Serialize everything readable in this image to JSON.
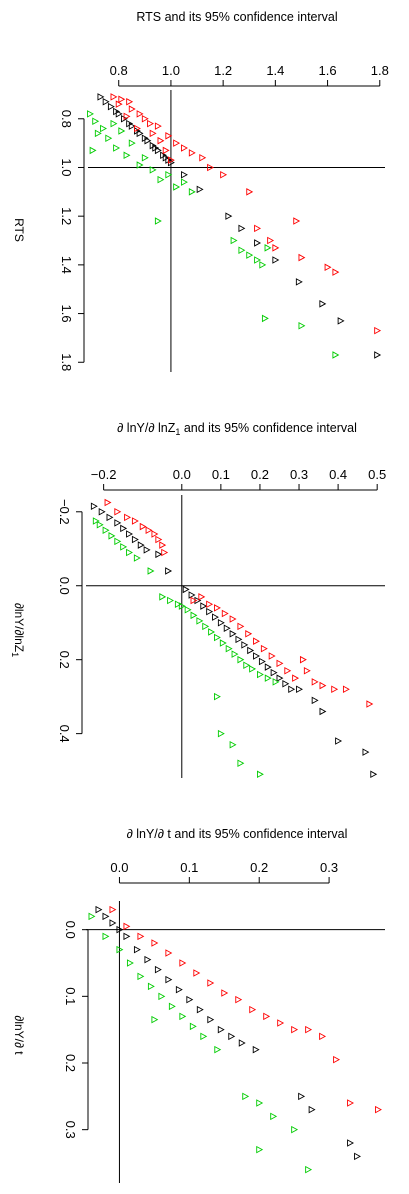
{
  "colors": {
    "black": "#000000",
    "red": "#ff0000",
    "green": "#00cc00"
  },
  "chart_data": [
    {
      "type": "scatter",
      "title": "RTS and its 95% confidence interval",
      "ylabel": "RTS",
      "xlim": [
        0.69,
        1.82
      ],
      "ylim": [
        0.69,
        1.84
      ],
      "xticks": [
        "0.8",
        "1.0",
        "1.2",
        "1.4",
        "1.6",
        "1.8"
      ],
      "yticks": [
        "0.8",
        "1.0",
        "1.2",
        "1.4",
        "1.6",
        "1.8"
      ],
      "ref": 1.0,
      "series": [
        {
          "color": "black",
          "points": [
            [
              0.73,
              0.71
            ],
            [
              0.75,
              0.73
            ],
            [
              0.77,
              0.75
            ],
            [
              0.79,
              0.77
            ],
            [
              0.8,
              0.78
            ],
            [
              0.82,
              0.8
            ],
            [
              0.84,
              0.82
            ],
            [
              0.85,
              0.83
            ],
            [
              0.87,
              0.85
            ],
            [
              0.88,
              0.86
            ],
            [
              0.9,
              0.88
            ],
            [
              0.91,
              0.89
            ],
            [
              0.93,
              0.91
            ],
            [
              0.94,
              0.92
            ],
            [
              0.95,
              0.93
            ],
            [
              0.97,
              0.95
            ],
            [
              0.98,
              0.96
            ],
            [
              0.99,
              0.97
            ],
            [
              1.0,
              0.98
            ],
            [
              1.05,
              1.03
            ],
            [
              1.11,
              1.09
            ],
            [
              1.22,
              1.2
            ],
            [
              1.27,
              1.25
            ],
            [
              1.33,
              1.31
            ],
            [
              1.4,
              1.38
            ],
            [
              1.49,
              1.47
            ],
            [
              1.58,
              1.56
            ],
            [
              1.65,
              1.63
            ],
            [
              1.79,
              1.77
            ]
          ]
        },
        {
          "color": "red",
          "points": [
            [
              0.78,
              0.71
            ],
            [
              0.81,
              0.72
            ],
            [
              0.84,
              0.73
            ],
            [
              0.8,
              0.74
            ],
            [
              0.85,
              0.76
            ],
            [
              0.88,
              0.78
            ],
            [
              0.83,
              0.79
            ],
            [
              0.9,
              0.8
            ],
            [
              0.92,
              0.82
            ],
            [
              0.95,
              0.83
            ],
            [
              0.87,
              0.84
            ],
            [
              0.93,
              0.86
            ],
            [
              0.99,
              0.87
            ],
            [
              0.96,
              0.89
            ],
            [
              1.02,
              0.9
            ],
            [
              1.05,
              0.92
            ],
            [
              0.98,
              0.93
            ],
            [
              1.08,
              0.94
            ],
            [
              1.12,
              0.96
            ],
            [
              1.0,
              0.97
            ],
            [
              1.15,
              1.0
            ],
            [
              1.2,
              1.03
            ],
            [
              1.3,
              1.1
            ],
            [
              1.33,
              1.25
            ],
            [
              1.38,
              1.3
            ],
            [
              1.4,
              1.33
            ],
            [
              1.48,
              1.22
            ],
            [
              1.5,
              1.37
            ],
            [
              1.6,
              1.41
            ],
            [
              1.63,
              1.43
            ],
            [
              1.79,
              1.67
            ]
          ]
        },
        {
          "color": "green",
          "points": [
            [
              0.69,
              0.78
            ],
            [
              0.71,
              0.81
            ],
            [
              0.72,
              0.86
            ],
            [
              0.74,
              0.84
            ],
            [
              0.76,
              0.88
            ],
            [
              0.78,
              0.82
            ],
            [
              0.79,
              0.92
            ],
            [
              0.81,
              0.85
            ],
            [
              0.83,
              0.95
            ],
            [
              0.85,
              0.9
            ],
            [
              0.7,
              0.93
            ],
            [
              0.88,
              0.99
            ],
            [
              0.9,
              0.96
            ],
            [
              0.93,
              1.01
            ],
            [
              0.96,
              1.05
            ],
            [
              0.99,
              1.03
            ],
            [
              1.02,
              1.08
            ],
            [
              1.05,
              1.06
            ],
            [
              1.08,
              1.1
            ],
            [
              0.95,
              1.22
            ],
            [
              1.24,
              1.3
            ],
            [
              1.27,
              1.34
            ],
            [
              1.3,
              1.36
            ],
            [
              1.33,
              1.38
            ],
            [
              1.35,
              1.4
            ],
            [
              1.36,
              1.62
            ],
            [
              1.5,
              1.65
            ],
            [
              1.63,
              1.77
            ],
            [
              1.37,
              1.33
            ]
          ]
        }
      ]
    },
    {
      "type": "scatter",
      "title": "∂ lnY/∂ lnZ",
      "title_sub": "1",
      "title_rest": " and its 95% confidence interval",
      "ylabel": "∂lnY/∂lnZ",
      "ylabel_sub": "1",
      "xlim": [
        -0.24,
        0.52
      ],
      "ylim": [
        -0.24,
        0.52
      ],
      "xticks": [
        "-0.2",
        "0.0",
        "0.1",
        "0.2",
        "0.3",
        "0.4",
        "0.5"
      ],
      "xtick_values": [
        -0.2,
        0.0,
        0.1,
        0.2,
        0.3,
        0.4,
        0.5
      ],
      "yticks": [
        "-0.2",
        "0.0",
        "0.2",
        "0.4"
      ],
      "ytick_values": [
        -0.2,
        0.0,
        0.2,
        0.4
      ],
      "ref": 0.0,
      "series": [
        {
          "color": "black",
          "points": [
            [
              -0.225,
              -0.215
            ],
            [
              -0.205,
              -0.2
            ],
            [
              -0.185,
              -0.185
            ],
            [
              -0.165,
              -0.17
            ],
            [
              -0.15,
              -0.155
            ],
            [
              -0.135,
              -0.14
            ],
            [
              -0.12,
              -0.125
            ],
            [
              -0.105,
              -0.11
            ],
            [
              -0.09,
              -0.097
            ],
            [
              -0.06,
              -0.085
            ],
            [
              -0.035,
              -0.04
            ],
            [
              0.01,
              0.01
            ],
            [
              0.025,
              0.025
            ],
            [
              0.04,
              0.04
            ],
            [
              0.055,
              0.055
            ],
            [
              0.07,
              0.07
            ],
            [
              0.085,
              0.085
            ],
            [
              0.1,
              0.1
            ],
            [
              0.115,
              0.115
            ],
            [
              0.13,
              0.13
            ],
            [
              0.145,
              0.145
            ],
            [
              0.16,
              0.16
            ],
            [
              0.175,
              0.175
            ],
            [
              0.19,
              0.19
            ],
            [
              0.205,
              0.205
            ],
            [
              0.22,
              0.22
            ],
            [
              0.235,
              0.235
            ],
            [
              0.25,
              0.25
            ],
            [
              0.265,
              0.265
            ],
            [
              0.28,
              0.28
            ],
            [
              0.3,
              0.28
            ],
            [
              0.34,
              0.31
            ],
            [
              0.36,
              0.34
            ],
            [
              0.4,
              0.42
            ],
            [
              0.47,
              0.45
            ],
            [
              0.49,
              0.51
            ]
          ]
        },
        {
          "color": "red",
          "points": [
            [
              -0.19,
              -0.225
            ],
            [
              -0.165,
              -0.2
            ],
            [
              -0.14,
              -0.185
            ],
            [
              -0.12,
              -0.175
            ],
            [
              -0.1,
              -0.16
            ],
            [
              -0.085,
              -0.15
            ],
            [
              -0.07,
              -0.14
            ],
            [
              -0.06,
              -0.125
            ],
            [
              -0.05,
              -0.11
            ],
            [
              -0.045,
              -0.09
            ],
            [
              0.03,
              0.04
            ],
            [
              0.05,
              0.03
            ],
            [
              0.07,
              0.05
            ],
            [
              0.09,
              0.06
            ],
            [
              0.11,
              0.075
            ],
            [
              0.13,
              0.09
            ],
            [
              0.15,
              0.11
            ],
            [
              0.17,
              0.13
            ],
            [
              0.19,
              0.15
            ],
            [
              0.21,
              0.17
            ],
            [
              0.23,
              0.19
            ],
            [
              0.25,
              0.21
            ],
            [
              0.27,
              0.23
            ],
            [
              0.29,
              0.25
            ],
            [
              0.31,
              0.2
            ],
            [
              0.32,
              0.23
            ],
            [
              0.34,
              0.26
            ],
            [
              0.36,
              0.27
            ],
            [
              0.39,
              0.28
            ],
            [
              0.42,
              0.28
            ],
            [
              0.48,
              0.32
            ]
          ]
        },
        {
          "color": "green",
          "points": [
            [
              -0.22,
              -0.175
            ],
            [
              -0.21,
              -0.165
            ],
            [
              -0.195,
              -0.15
            ],
            [
              -0.18,
              -0.135
            ],
            [
              -0.165,
              -0.12
            ],
            [
              -0.15,
              -0.105
            ],
            [
              -0.135,
              -0.09
            ],
            [
              -0.115,
              -0.075
            ],
            [
              -0.08,
              -0.04
            ],
            [
              -0.05,
              0.03
            ],
            [
              -0.03,
              0.04
            ],
            [
              -0.01,
              0.05
            ],
            [
              0.0,
              0.055
            ],
            [
              0.015,
              0.065
            ],
            [
              0.03,
              0.08
            ],
            [
              0.045,
              0.095
            ],
            [
              0.06,
              0.11
            ],
            [
              0.075,
              0.125
            ],
            [
              0.09,
              0.14
            ],
            [
              0.105,
              0.155
            ],
            [
              0.12,
              0.17
            ],
            [
              0.135,
              0.185
            ],
            [
              0.15,
              0.2
            ],
            [
              0.165,
              0.215
            ],
            [
              0.18,
              0.225
            ],
            [
              0.2,
              0.24
            ],
            [
              0.22,
              0.25
            ],
            [
              0.24,
              0.26
            ],
            [
              0.09,
              0.3
            ],
            [
              0.1,
              0.4
            ],
            [
              0.13,
              0.43
            ],
            [
              0.15,
              0.48
            ],
            [
              0.2,
              0.51
            ]
          ]
        }
      ]
    },
    {
      "type": "scatter",
      "title": "∂ lnY/∂ t and its 95% confidence interval",
      "ylabel": "∂lnY/∂ t",
      "xlim": [
        -0.045,
        0.38
      ],
      "ylim": [
        -0.04,
        0.38
      ],
      "xticks": [
        "0.0",
        "0.1",
        "0.2",
        "0.3"
      ],
      "xtick_values": [
        0.0,
        0.1,
        0.2,
        0.3
      ],
      "yticks": [
        "0.0",
        "0.1",
        "0.2",
        "0.3"
      ],
      "ytick_values": [
        0.0,
        0.1,
        0.2,
        0.3
      ],
      "ref": 0.0,
      "series": [
        {
          "color": "black",
          "points": [
            [
              -0.03,
              -0.03
            ],
            [
              -0.02,
              -0.02
            ],
            [
              -0.01,
              -0.01
            ],
            [
              0.0,
              0.0
            ],
            [
              0.01,
              0.01
            ],
            [
              0.025,
              0.03
            ],
            [
              0.04,
              0.045
            ],
            [
              0.055,
              0.06
            ],
            [
              0.07,
              0.075
            ],
            [
              0.085,
              0.09
            ],
            [
              0.1,
              0.105
            ],
            [
              0.115,
              0.12
            ],
            [
              0.13,
              0.135
            ],
            [
              0.145,
              0.15
            ],
            [
              0.16,
              0.16
            ],
            [
              0.175,
              0.17
            ],
            [
              0.195,
              0.18
            ],
            [
              0.26,
              0.25
            ],
            [
              0.275,
              0.27
            ],
            [
              0.33,
              0.32
            ],
            [
              0.34,
              0.34
            ]
          ]
        },
        {
          "color": "red",
          "points": [
            [
              -0.01,
              -0.03
            ],
            [
              0.01,
              -0.005
            ],
            [
              0.03,
              0.01
            ],
            [
              0.05,
              0.02
            ],
            [
              0.07,
              0.035
            ],
            [
              0.09,
              0.05
            ],
            [
              0.11,
              0.065
            ],
            [
              0.13,
              0.08
            ],
            [
              0.15,
              0.095
            ],
            [
              0.17,
              0.105
            ],
            [
              0.19,
              0.12
            ],
            [
              0.21,
              0.13
            ],
            [
              0.23,
              0.14
            ],
            [
              0.25,
              0.15
            ],
            [
              0.27,
              0.15
            ],
            [
              0.29,
              0.16
            ],
            [
              0.31,
              0.195
            ],
            [
              0.33,
              0.26
            ],
            [
              0.37,
              0.27
            ]
          ]
        },
        {
          "color": "green",
          "points": [
            [
              -0.04,
              -0.02
            ],
            [
              -0.02,
              0.01
            ],
            [
              0.0,
              0.03
            ],
            [
              0.015,
              0.05
            ],
            [
              0.03,
              0.07
            ],
            [
              0.045,
              0.085
            ],
            [
              0.06,
              0.1
            ],
            [
              0.075,
              0.115
            ],
            [
              0.09,
              0.13
            ],
            [
              0.05,
              0.135
            ],
            [
              0.105,
              0.145
            ],
            [
              0.12,
              0.16
            ],
            [
              0.14,
              0.18
            ],
            [
              0.18,
              0.25
            ],
            [
              0.2,
              0.26
            ],
            [
              0.22,
              0.28
            ],
            [
              0.25,
              0.3
            ],
            [
              0.2,
              0.33
            ],
            [
              0.27,
              0.36
            ]
          ]
        }
      ]
    }
  ]
}
